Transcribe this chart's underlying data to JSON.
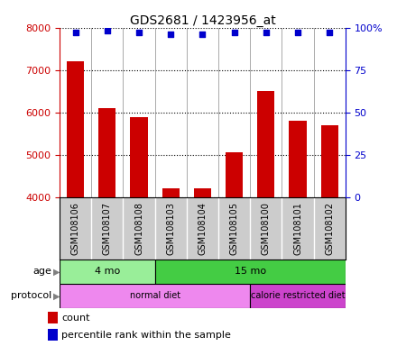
{
  "title": "GDS2681 / 1423956_at",
  "samples": [
    "GSM108106",
    "GSM108107",
    "GSM108108",
    "GSM108103",
    "GSM108104",
    "GSM108105",
    "GSM108100",
    "GSM108101",
    "GSM108102"
  ],
  "counts": [
    7200,
    6100,
    5900,
    4200,
    4200,
    5050,
    6500,
    5800,
    5700
  ],
  "percentile_ranks": [
    97,
    98,
    97,
    96,
    96,
    97,
    97,
    97,
    97
  ],
  "ylim": [
    4000,
    8000
  ],
  "right_ylim": [
    0,
    100
  ],
  "right_yticks": [
    0,
    25,
    50,
    75,
    100
  ],
  "right_yticklabels": [
    "0",
    "25",
    "50",
    "75",
    "100%"
  ],
  "left_yticks": [
    4000,
    5000,
    6000,
    7000,
    8000
  ],
  "bar_color": "#cc0000",
  "dot_color": "#0000cc",
  "bar_width": 0.55,
  "age_groups": [
    {
      "label": "4 mo",
      "start": 0,
      "end": 3,
      "color": "#99ee99"
    },
    {
      "label": "15 mo",
      "start": 3,
      "end": 9,
      "color": "#44cc44"
    }
  ],
  "protocol_groups": [
    {
      "label": "normal diet",
      "start": 0,
      "end": 6,
      "color": "#ee88ee"
    },
    {
      "label": "calorie restricted diet",
      "start": 6,
      "end": 9,
      "color": "#cc44cc"
    }
  ],
  "left_axis_color": "#cc0000",
  "right_axis_color": "#0000cc",
  "plot_bg_color": "#ffffff",
  "label_bg_color": "#cccccc",
  "grid_color": "#000000",
  "legend_count_color": "#cc0000",
  "legend_pct_color": "#0000cc",
  "fig_width": 4.4,
  "fig_height": 3.84,
  "dpi": 100
}
